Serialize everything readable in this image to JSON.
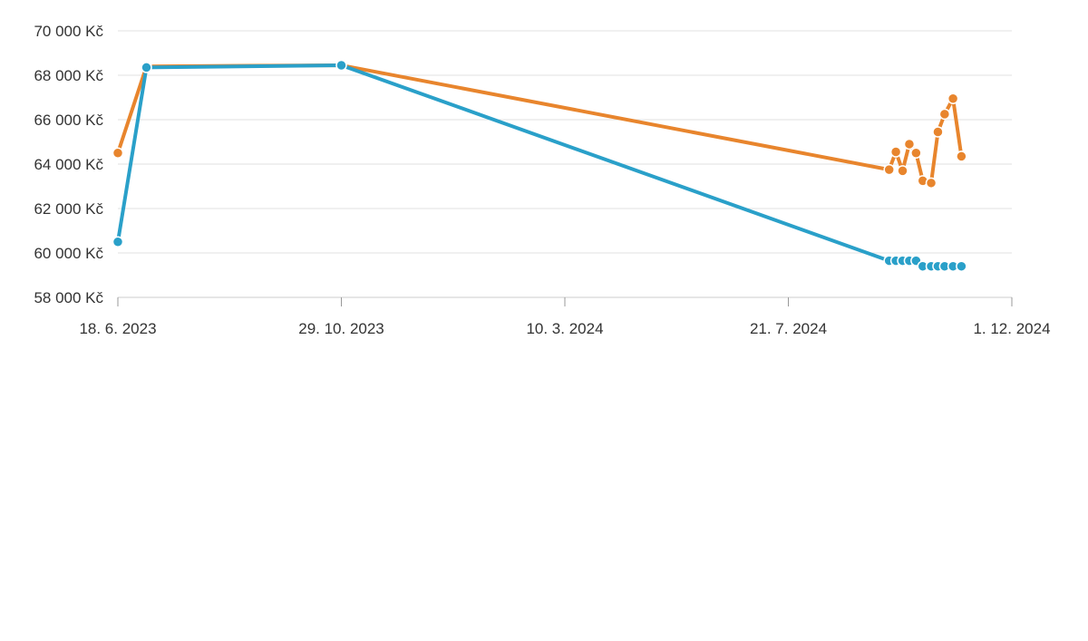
{
  "chart_data": {
    "type": "line",
    "title": "",
    "xlabel": "",
    "ylabel": "",
    "x_axis": {
      "type": "date",
      "range": [
        "2023-06-18",
        "2024-12-01"
      ],
      "ticks": [
        {
          "date": "2023-06-18",
          "label": "18. 6. 2023"
        },
        {
          "date": "2023-10-29",
          "label": "29. 10. 2023"
        },
        {
          "date": "2024-03-10",
          "label": "10. 3. 2024"
        },
        {
          "date": "2024-07-21",
          "label": "21. 7. 2024"
        },
        {
          "date": "2024-12-01",
          "label": "1. 12. 2024"
        }
      ]
    },
    "y_axis": {
      "range": [
        58000,
        70000
      ],
      "ticks": [
        {
          "value": 58000,
          "label": "58 000 Kč"
        },
        {
          "value": 60000,
          "label": "60 000 Kč"
        },
        {
          "value": 62000,
          "label": "62 000 Kč"
        },
        {
          "value": 64000,
          "label": "64 000 Kč"
        },
        {
          "value": 66000,
          "label": "66 000 Kč"
        },
        {
          "value": 68000,
          "label": "68 000 Kč"
        },
        {
          "value": 70000,
          "label": "70 000 Kč"
        }
      ]
    },
    "grid": true,
    "legend": "none",
    "series": [
      {
        "color": "#e8852d",
        "points": [
          {
            "x": "2023-06-18",
            "y": 64500
          },
          {
            "x": "2023-07-05",
            "y": 68400
          },
          {
            "x": "2023-10-29",
            "y": 68450
          },
          {
            "x": "2024-09-19",
            "y": 63750
          },
          {
            "x": "2024-09-23",
            "y": 64550
          },
          {
            "x": "2024-09-27",
            "y": 63700
          },
          {
            "x": "2024-10-01",
            "y": 64900
          },
          {
            "x": "2024-10-05",
            "y": 64500
          },
          {
            "x": "2024-10-09",
            "y": 63250
          },
          {
            "x": "2024-10-14",
            "y": 63150
          },
          {
            "x": "2024-10-18",
            "y": 65450
          },
          {
            "x": "2024-10-22",
            "y": 66250
          },
          {
            "x": "2024-10-27",
            "y": 66950
          },
          {
            "x": "2024-11-01",
            "y": 64350
          }
        ]
      },
      {
        "color": "#2aa0c9",
        "points": [
          {
            "x": "2023-06-18",
            "y": 60500
          },
          {
            "x": "2023-07-05",
            "y": 68350
          },
          {
            "x": "2023-10-29",
            "y": 68450
          },
          {
            "x": "2024-09-19",
            "y": 59650
          },
          {
            "x": "2024-09-23",
            "y": 59650
          },
          {
            "x": "2024-09-27",
            "y": 59650
          },
          {
            "x": "2024-10-01",
            "y": 59650
          },
          {
            "x": "2024-10-05",
            "y": 59650
          },
          {
            "x": "2024-10-09",
            "y": 59400
          },
          {
            "x": "2024-10-14",
            "y": 59400
          },
          {
            "x": "2024-10-18",
            "y": 59400
          },
          {
            "x": "2024-10-22",
            "y": 59400
          },
          {
            "x": "2024-10-27",
            "y": 59400
          },
          {
            "x": "2024-11-01",
            "y": 59400
          }
        ]
      }
    ]
  }
}
